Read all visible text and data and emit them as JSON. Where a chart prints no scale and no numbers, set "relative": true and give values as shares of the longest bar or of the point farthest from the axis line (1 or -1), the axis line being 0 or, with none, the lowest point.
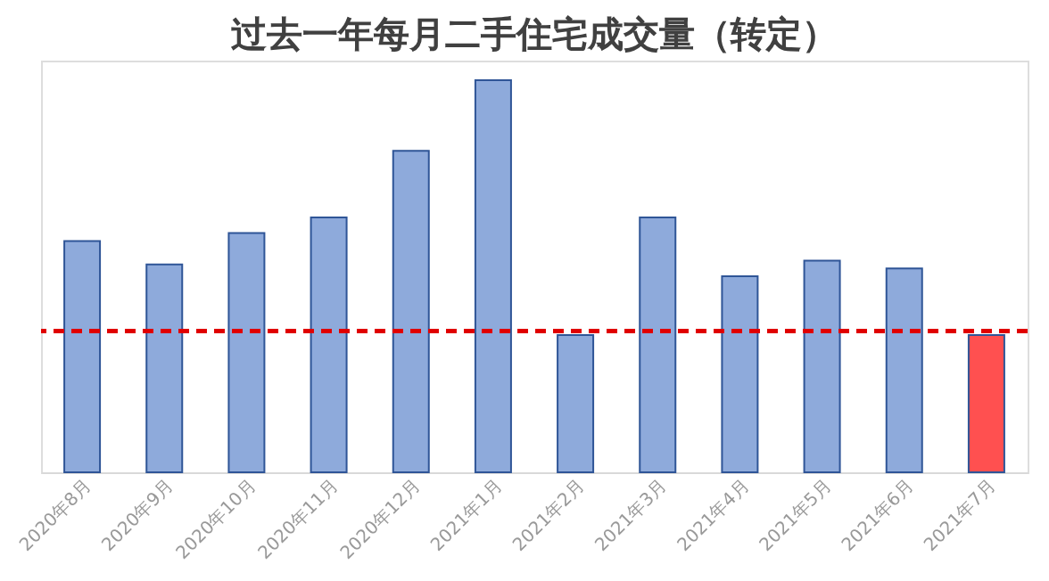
{
  "chart_data": {
    "type": "bar",
    "title": "过去一年每月二手住宅成交量（转定）",
    "categories": [
      "2020年8月",
      "2020年9月",
      "2020年10月",
      "2020年11月",
      "2020年12月",
      "2021年1月",
      "2021年2月",
      "2021年3月",
      "2021年4月",
      "2021年5月",
      "2021年6月",
      "2021年7月"
    ],
    "values": [
      0.59,
      0.53,
      0.61,
      0.65,
      0.82,
      1,
      0.35,
      0.65,
      0.5,
      0.54,
      0.52,
      0.35
    ],
    "colors": [
      "#8eaadb",
      "#8eaadb",
      "#8eaadb",
      "#8eaadb",
      "#8eaadb",
      "#8eaadb",
      "#8eaadb",
      "#8eaadb",
      "#8eaadb",
      "#8eaadb",
      "#8eaadb",
      "#ff5050"
    ],
    "relative": true,
    "ref_lines": [
      {
        "axis": "y",
        "value": 0.36,
        "color": "#e00000",
        "line_style": "dashed"
      }
    ]
  }
}
